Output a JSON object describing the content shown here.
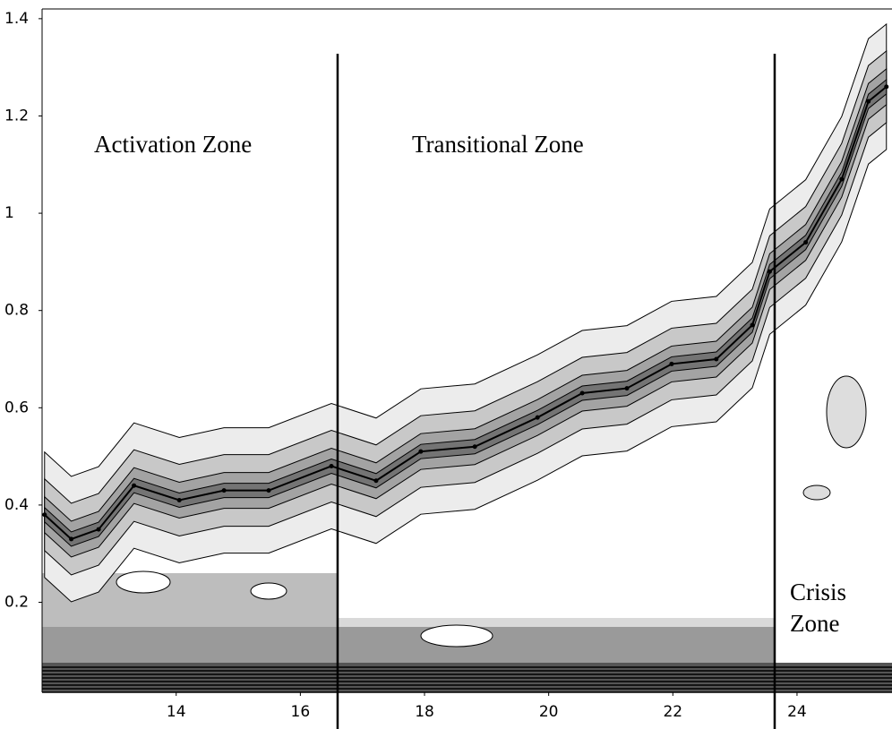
{
  "chart_data": {
    "type": "contour",
    "xlim": [
      11.84,
      25.53
    ],
    "ylim": [
      0.015,
      1.42
    ],
    "xticks": [
      14,
      16,
      18,
      20,
      22,
      24
    ],
    "yticks": [
      0.2,
      0.4,
      0.6,
      0.8,
      1,
      1.2,
      1.4
    ],
    "ridge": {
      "color": "#000000",
      "x": [
        11.88,
        12.31,
        12.75,
        13.32,
        14.05,
        14.77,
        15.49,
        16.5,
        17.22,
        17.94,
        18.81,
        19.82,
        20.54,
        21.26,
        21.98,
        22.7,
        23.28,
        23.56,
        24.14,
        24.72,
        25.15,
        25.44
      ],
      "values": [
        0.38,
        0.33,
        0.35,
        0.44,
        0.41,
        0.43,
        0.43,
        0.48,
        0.45,
        0.51,
        0.52,
        0.58,
        0.63,
        0.64,
        0.69,
        0.7,
        0.77,
        0.88,
        0.94,
        1.07,
        1.23,
        1.26
      ]
    },
    "zone_boundaries": [
      16.6,
      23.64
    ],
    "annotations": [
      "Activation Zone",
      "Transitional Zone",
      "Crisis",
      "Zone"
    ]
  }
}
